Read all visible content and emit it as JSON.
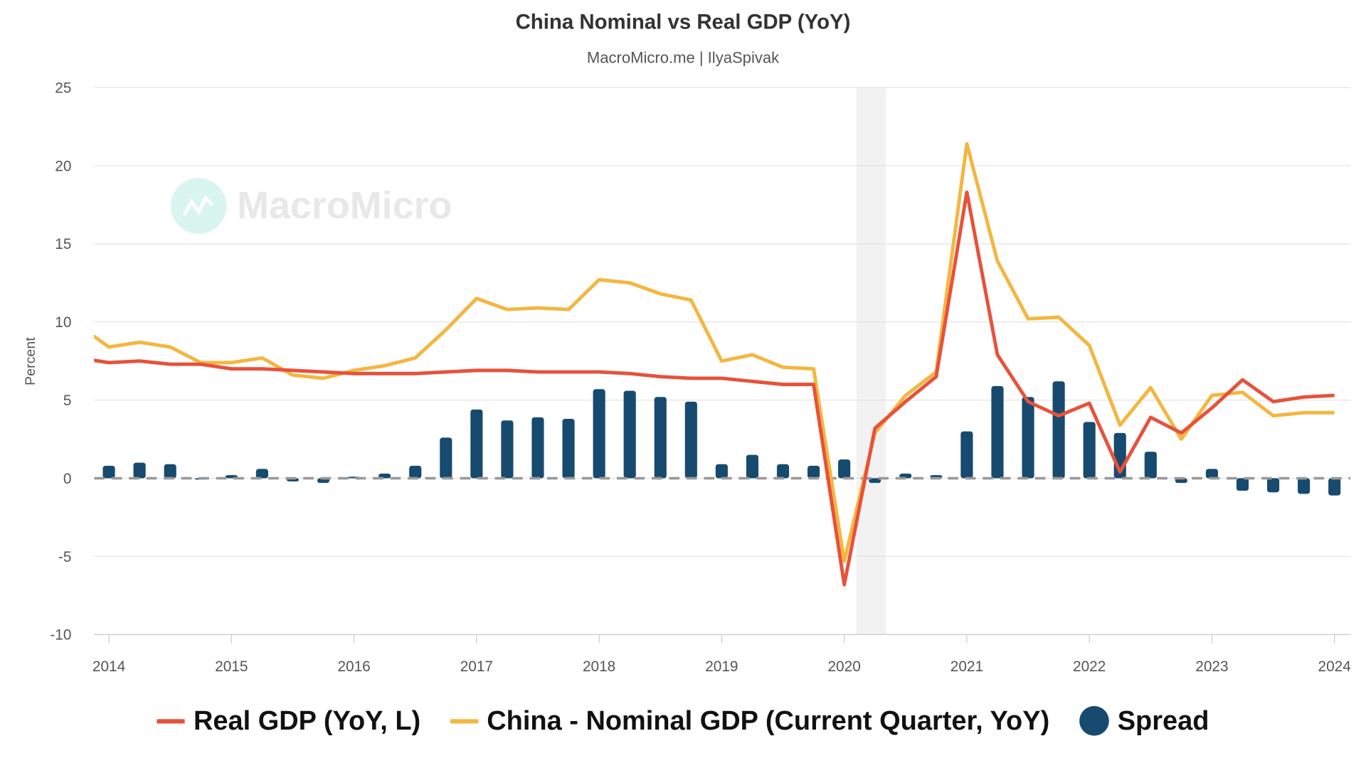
{
  "chart_data": {
    "type": "line",
    "title": "China Nominal vs Real GDP (YoY)",
    "subtitle": "MacroMicro.me | IlyaSpivak",
    "ylabel": "Percent",
    "xlabel": "",
    "ylim": [
      -10,
      25
    ],
    "yticks": [
      "25",
      "20",
      "15",
      "10",
      "5",
      "0",
      "-5",
      "-10"
    ],
    "xticks": [
      "2014",
      "2015",
      "2016",
      "2017",
      "2018",
      "2019",
      "2020",
      "2021",
      "2022",
      "2023",
      "2024"
    ],
    "grid": true,
    "legend_position": "bottom",
    "watermark": "MacroMicro",
    "shaded_period": [
      "2020-Q1",
      "2020-Q2"
    ],
    "x": [
      "2013-Q4",
      "2014-Q1",
      "2014-Q2",
      "2014-Q3",
      "2014-Q4",
      "2015-Q1",
      "2015-Q2",
      "2015-Q3",
      "2015-Q4",
      "2016-Q1",
      "2016-Q2",
      "2016-Q3",
      "2016-Q4",
      "2017-Q1",
      "2017-Q2",
      "2017-Q3",
      "2017-Q4",
      "2018-Q1",
      "2018-Q2",
      "2018-Q3",
      "2018-Q4",
      "2019-Q1",
      "2019-Q2",
      "2019-Q3",
      "2019-Q4",
      "2020-Q1",
      "2020-Q2",
      "2020-Q3",
      "2020-Q4",
      "2021-Q1",
      "2021-Q2",
      "2021-Q3",
      "2021-Q4",
      "2022-Q1",
      "2022-Q2",
      "2022-Q3",
      "2022-Q4",
      "2023-Q1",
      "2023-Q2",
      "2023-Q3",
      "2023-Q4",
      "2024-Q1"
    ],
    "series": [
      {
        "name": "Real GDP (YoY, L)",
        "type": "line",
        "color": "#e8513a",
        "values": [
          7.7,
          7.4,
          7.5,
          7.3,
          7.3,
          7.0,
          7.0,
          6.9,
          6.8,
          6.7,
          6.7,
          6.7,
          6.8,
          6.9,
          6.9,
          6.8,
          6.8,
          6.8,
          6.7,
          6.5,
          6.4,
          6.4,
          6.2,
          6.0,
          6.0,
          -6.8,
          3.2,
          4.9,
          6.5,
          18.3,
          7.9,
          4.9,
          4.0,
          4.8,
          0.4,
          3.9,
          2.9,
          4.5,
          6.3,
          4.9,
          5.2,
          5.3
        ]
      },
      {
        "name": "China - Nominal GDP (Current Quarter, YoY)",
        "type": "line",
        "color": "#f4b63f",
        "values": [
          9.8,
          8.4,
          8.7,
          8.4,
          7.4,
          7.4,
          7.7,
          6.6,
          6.4,
          6.9,
          7.2,
          7.7,
          9.5,
          11.5,
          10.8,
          10.9,
          10.8,
          12.7,
          12.5,
          11.8,
          11.4,
          7.5,
          7.9,
          7.1,
          7.0,
          -5.3,
          2.9,
          5.3,
          6.8,
          21.4,
          13.9,
          10.2,
          10.3,
          8.5,
          3.4,
          5.8,
          2.5,
          5.3,
          5.5,
          4.0,
          4.2,
          4.2
        ]
      },
      {
        "name": "Spread",
        "type": "bar",
        "color": "#174a6f",
        "values": [
          null,
          0.8,
          1.0,
          0.9,
          0.0,
          0.2,
          0.6,
          -0.2,
          -0.3,
          0.1,
          0.3,
          0.8,
          2.6,
          4.4,
          3.7,
          3.9,
          3.8,
          5.7,
          5.6,
          5.2,
          4.9,
          0.9,
          1.5,
          0.9,
          0.8,
          1.2,
          -0.3,
          0.3,
          0.2,
          3.0,
          5.9,
          5.2,
          6.2,
          3.6,
          2.9,
          1.7,
          -0.3,
          0.6,
          -0.8,
          -0.9,
          -1.0,
          -1.1
        ]
      }
    ]
  }
}
